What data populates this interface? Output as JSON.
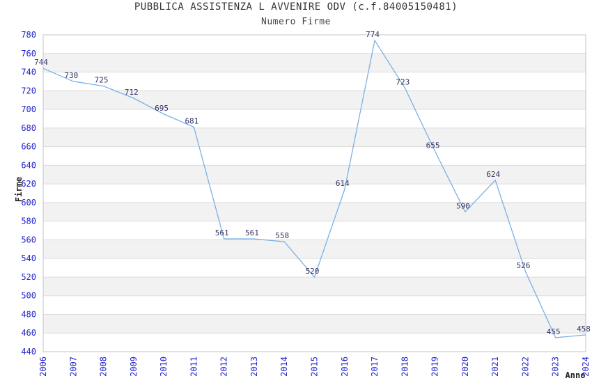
{
  "chart_data": {
    "type": "line",
    "title": "PUBBLICA ASSISTENZA L AVVENIRE ODV (c.f.84005150481)",
    "subtitle": "Numero Firme",
    "xlabel": "Anno",
    "ylabel": "Firme",
    "x": [
      2006,
      2007,
      2008,
      2009,
      2010,
      2011,
      2012,
      2013,
      2014,
      2015,
      2016,
      2017,
      2018,
      2019,
      2020,
      2021,
      2022,
      2023,
      2024
    ],
    "series": [
      {
        "name": "Numero Firme",
        "values": [
          744,
          730,
          725,
          712,
          695,
          681,
          561,
          561,
          558,
          520,
          614,
          774,
          723,
          655,
          590,
          624,
          526,
          455,
          458
        ]
      }
    ],
    "ylim": [
      440,
      780
    ],
    "ytick_step": 20,
    "grid": "horizontal-gridlines-with-alternating-bands",
    "legend": "none",
    "data_labels": "on",
    "colors": {
      "line": "#7CB0E4",
      "tick_label": "#2222CC",
      "data_label": "#333366",
      "title": "#333333",
      "subtitle": "#444444",
      "axis_title": "#222222",
      "band": "#F2F2F2",
      "gridline": "#DCDCDC",
      "border": "#C4C4C4",
      "background": "#FFFFFF"
    }
  }
}
